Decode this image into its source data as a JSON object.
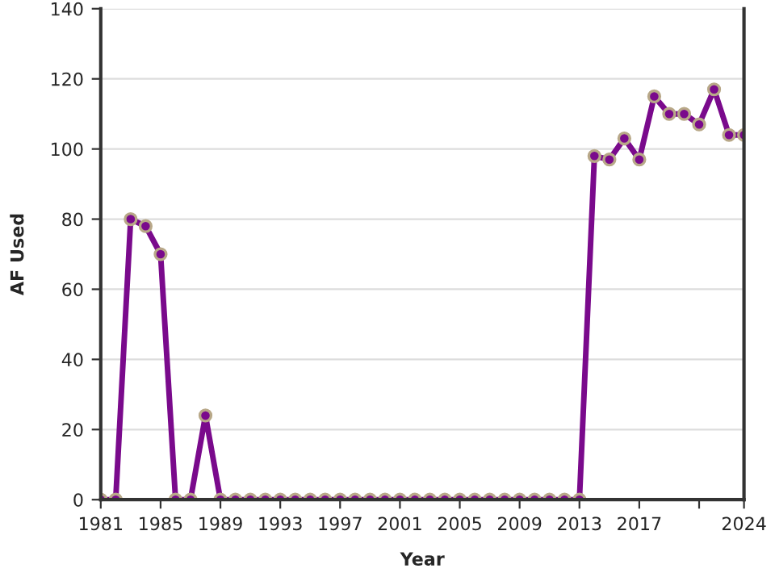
{
  "chart_data": {
    "type": "line",
    "xlabel": "Year",
    "ylabel": "AF Used",
    "x": [
      1981,
      1982,
      1983,
      1984,
      1985,
      1986,
      1987,
      1988,
      1989,
      1990,
      1991,
      1992,
      1993,
      1994,
      1995,
      1996,
      1997,
      1998,
      1999,
      2000,
      2001,
      2002,
      2003,
      2004,
      2005,
      2006,
      2007,
      2008,
      2009,
      2010,
      2011,
      2012,
      2013,
      2014,
      2015,
      2016,
      2017,
      2018,
      2019,
      2020,
      2021,
      2022,
      2023,
      2024
    ],
    "series": [
      {
        "color": "#7a0a8c",
        "values": [
          0,
          0,
          80,
          78,
          70,
          0,
          0,
          24,
          0,
          0,
          0,
          0,
          0,
          0,
          0,
          0,
          0,
          0,
          0,
          0,
          0,
          0,
          0,
          0,
          0,
          0,
          0,
          0,
          0,
          0,
          0,
          0,
          0,
          98,
          97,
          103,
          97,
          115,
          110,
          110,
          107,
          117,
          104,
          104
        ]
      }
    ],
    "xlim": [
      1981,
      2024
    ],
    "xticks": [
      1981,
      1985,
      1989,
      1993,
      1997,
      2001,
      2005,
      2009,
      2013,
      2017,
      {
        "value": 2021,
        "label": null
      },
      2024
    ],
    "ylim": [
      0,
      140
    ],
    "yticks": [
      0,
      20,
      40,
      60,
      80,
      100,
      120,
      140
    ],
    "grid": "y",
    "marker": "circle",
    "line_style": "solid"
  }
}
